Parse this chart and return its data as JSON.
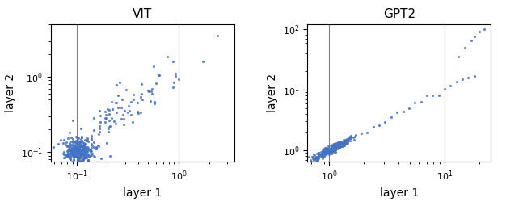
{
  "vit_title": "VIT",
  "gpt2_title": "GPT2",
  "xlabel": "layer 1",
  "ylabel": "layer 2",
  "vit_vlines": [
    0.1,
    1.0
  ],
  "gpt2_vlines": [
    1.0,
    10.0
  ],
  "point_color": "#4472C4",
  "point_size": 5,
  "point_alpha": 0.85,
  "vit_xlim": [
    0.055,
    3.5
  ],
  "vit_ylim": [
    0.075,
    5.0
  ],
  "gpt2_xlim": [
    0.65,
    25.0
  ],
  "gpt2_ylim": [
    0.65,
    120.0
  ],
  "random_seed": 42
}
